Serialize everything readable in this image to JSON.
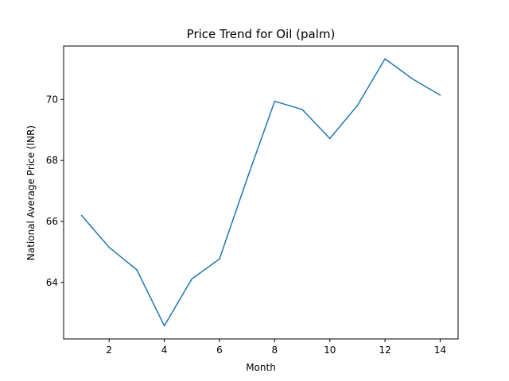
{
  "chart_data": {
    "type": "line",
    "title": "Price Trend for Oil (palm)",
    "xlabel": "Month",
    "ylabel": "National Average Price (INR)",
    "xlim": [
      0.35,
      14.65
    ],
    "ylim": [
      62.15,
      71.75
    ],
    "xticks": [
      2,
      4,
      6,
      8,
      10,
      12,
      14
    ],
    "yticks": [
      64,
      66,
      68,
      70
    ],
    "grid": false,
    "series": [
      {
        "color": "#1f77b4",
        "x": [
          1,
          2,
          3,
          4,
          5,
          6,
          7,
          8,
          9,
          10,
          11,
          12,
          13,
          14
        ],
        "y": [
          66.2,
          65.15,
          64.42,
          62.58,
          64.12,
          64.77,
          67.4,
          69.94,
          69.67,
          68.72,
          69.8,
          71.33,
          70.67,
          70.14
        ]
      }
    ]
  }
}
